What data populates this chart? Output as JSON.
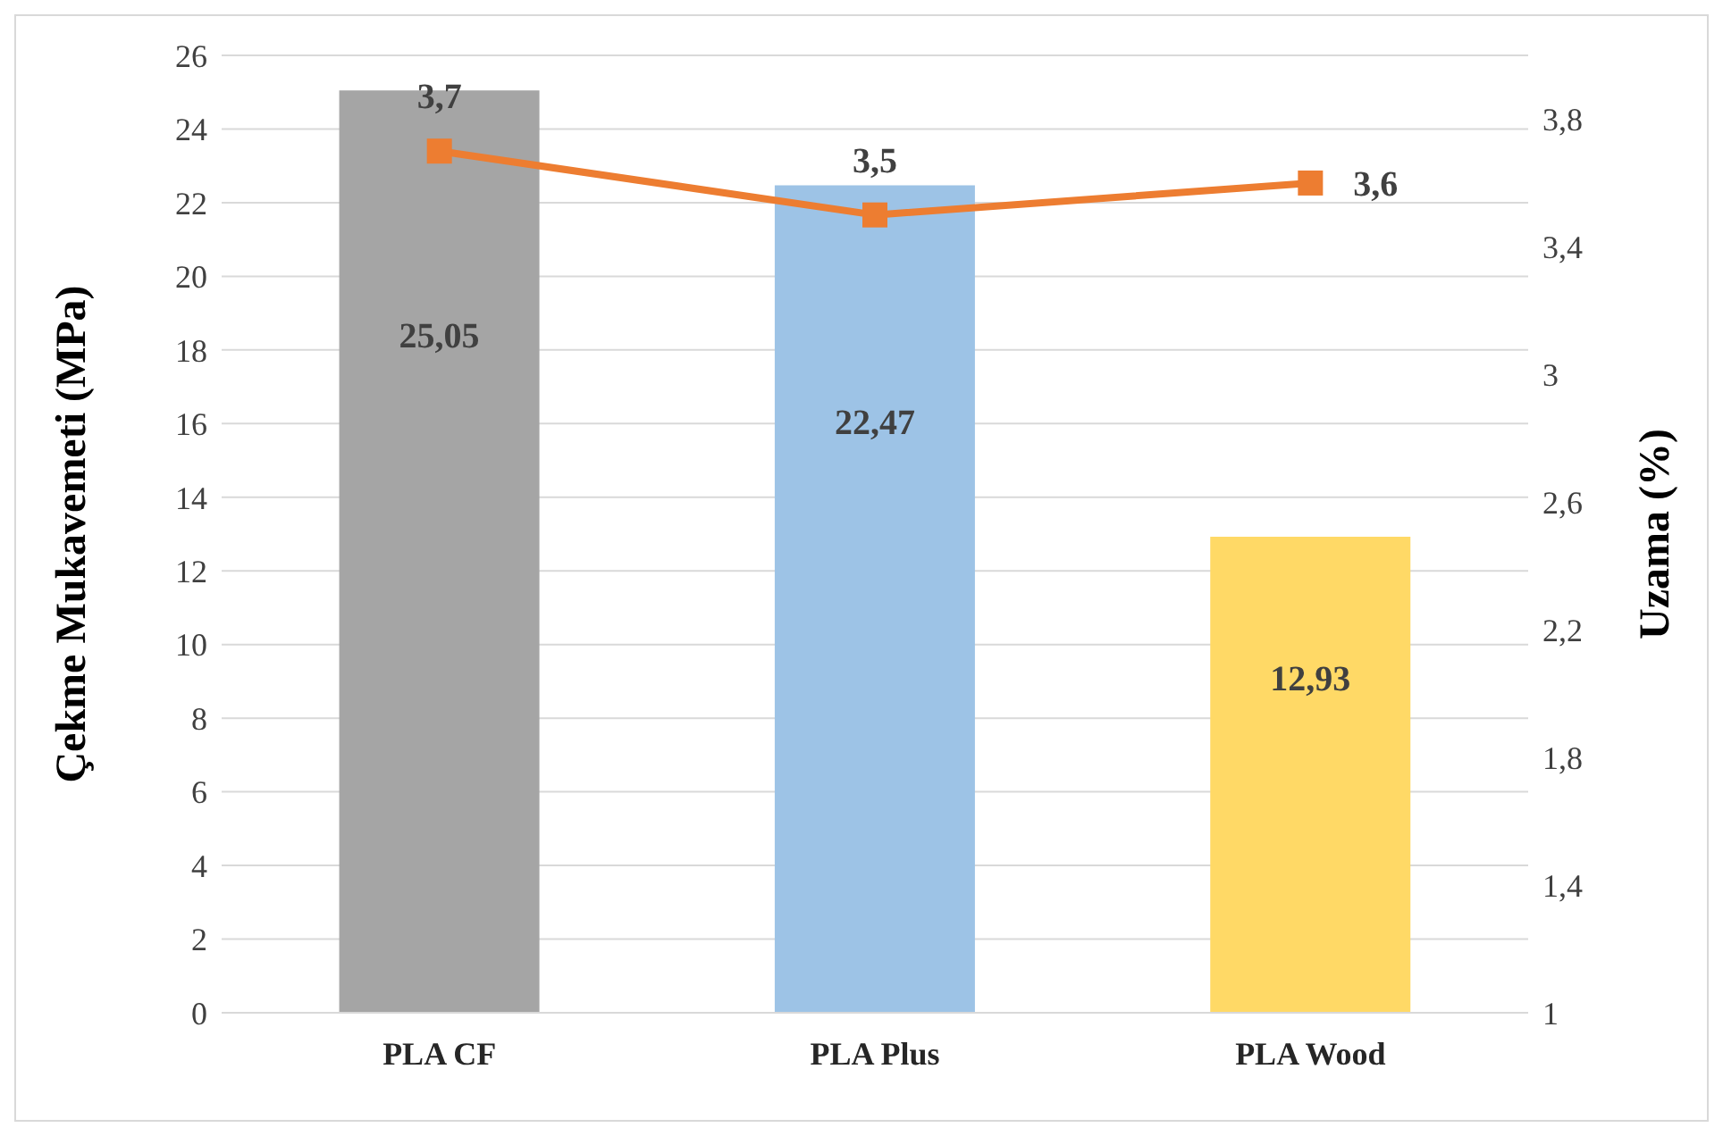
{
  "chart_data": {
    "type": "bar",
    "categories": [
      "PLA CF",
      "PLA Plus",
      "PLA Wood"
    ],
    "ylabel": "Çekme Mukavemeti (MPa)",
    "y2label": "Uzama (%)",
    "series": [
      {
        "colors": [
          "#a5a5a5",
          "#9dc3e6",
          "#ffd966"
        ],
        "values": [
          25.05,
          22.47,
          12.93
        ],
        "value_labels": [
          "25,05",
          "22,47",
          "12,93"
        ]
      },
      {
        "type": "line",
        "axis": "y2",
        "color": "#ed7d31",
        "values": [
          3.7,
          3.5,
          3.6
        ],
        "value_labels": [
          "3,7",
          "3,5",
          "3,6"
        ],
        "marker": "square",
        "line_style": "solid"
      }
    ],
    "ylim": [
      0,
      26
    ],
    "yticks": [
      0,
      2,
      4,
      6,
      8,
      10,
      12,
      14,
      16,
      18,
      20,
      22,
      24,
      26
    ],
    "y2lim": [
      1,
      4
    ],
    "y2ticks": [
      1,
      {
        "value": 1.4,
        "label": "1,4"
      },
      {
        "value": 1.8,
        "label": "1,8"
      },
      {
        "value": 2.2,
        "label": "2,2"
      },
      {
        "value": 2.6,
        "label": "2,6"
      },
      3,
      {
        "value": 3.4,
        "label": "3,4"
      },
      {
        "value": 3.8,
        "label": "3,8"
      }
    ],
    "grid": "y",
    "legend": false
  }
}
